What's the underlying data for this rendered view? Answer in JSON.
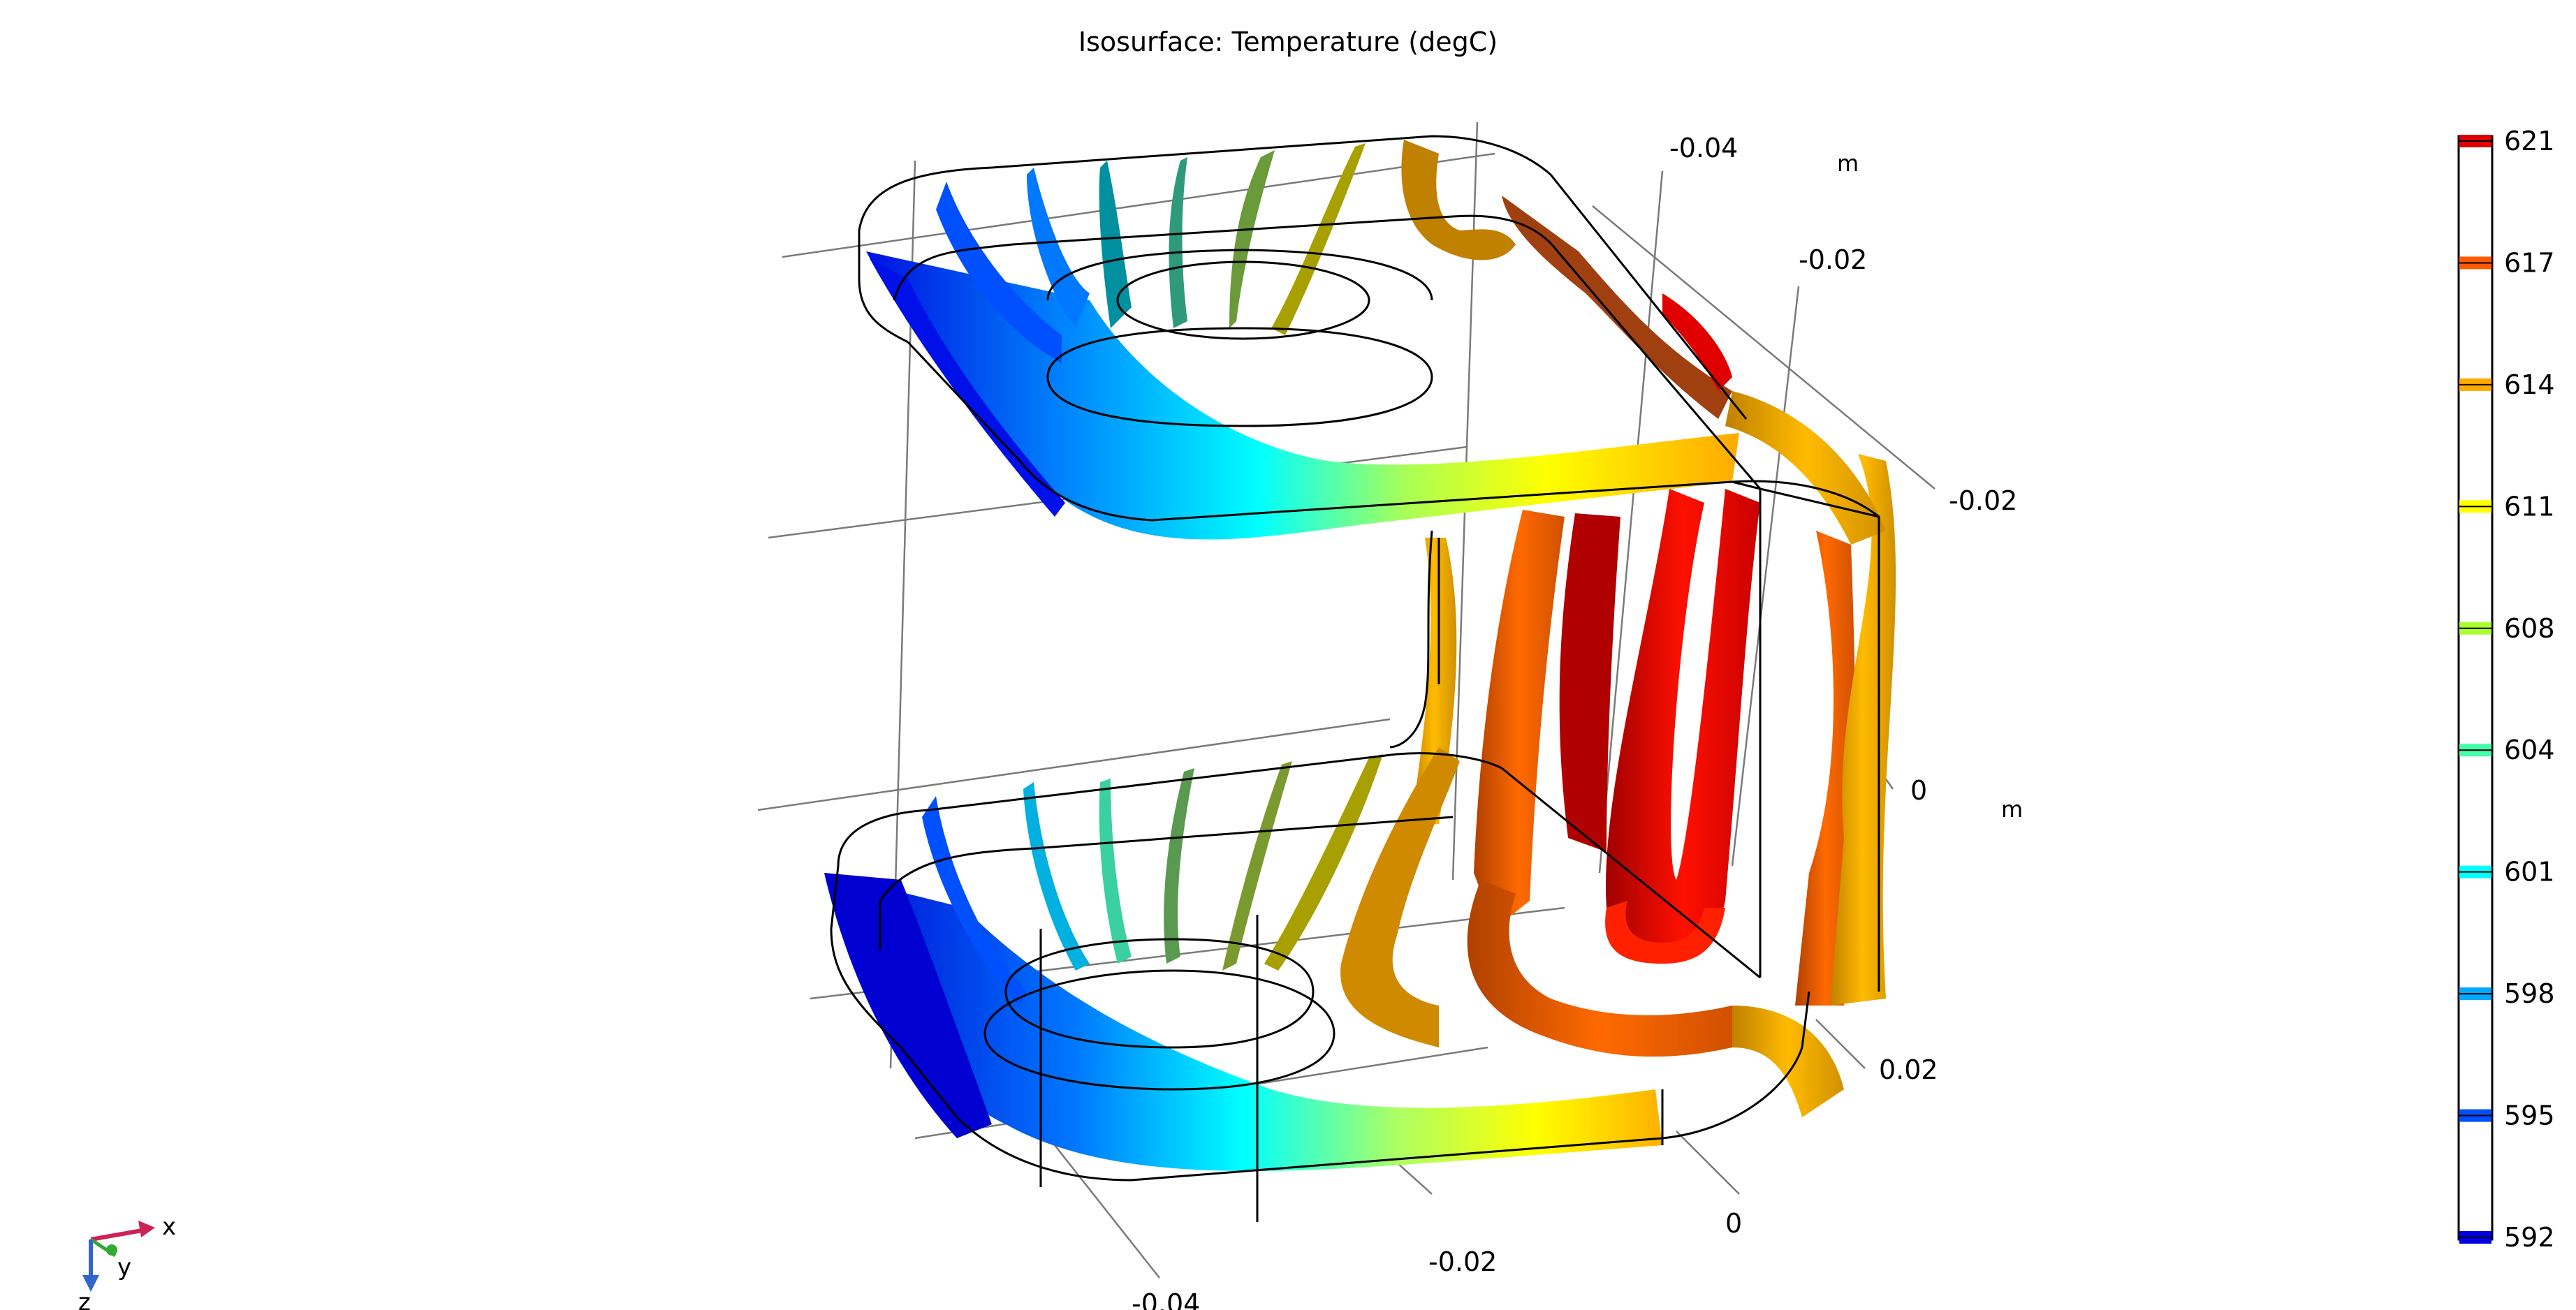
{
  "title": "Isosurface: Temperature (degC)",
  "chart_data": {
    "type": "isosurface",
    "quantity": "Temperature",
    "unit": "degC",
    "colormap": "rainbow",
    "color_range": [
      592,
      621
    ],
    "colorbar_ticks": [
      621,
      617,
      614,
      611,
      608,
      604,
      601,
      598,
      595,
      592
    ],
    "colorbar_colors": {
      "621": "#e00000",
      "617": "#ff5a00",
      "614": "#ffaa00",
      "611": "#ffff00",
      "608": "#aaff33",
      "604": "#44ffaa",
      "601": "#00ffff",
      "598": "#00a8ff",
      "595": "#0050ff",
      "592": "#0000e0"
    },
    "axes": {
      "y": {
        "ticks": [
          "-0.04",
          "-0.02"
        ],
        "unit": "m"
      },
      "z": {
        "ticks": [
          "-0.02",
          "0",
          "0.02"
        ],
        "unit": "m"
      },
      "x": {
        "ticks": [
          "-0.04",
          "-0.02",
          "0"
        ]
      }
    },
    "grid": true
  },
  "triad": {
    "x": "x",
    "y": "y",
    "z": "z",
    "colors": {
      "x": "#cc2255",
      "y": "#33aa33",
      "z": "#3366cc"
    }
  }
}
